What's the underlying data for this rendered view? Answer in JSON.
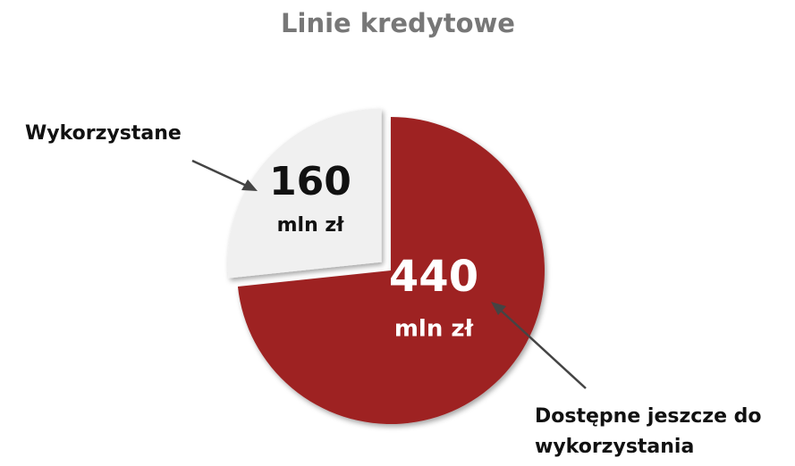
{
  "chart_data": {
    "type": "pie",
    "title": "Linie kredytowe",
    "categories": [
      "Wykorzystane",
      "Dostępne jeszcze do wykorzystania"
    ],
    "values": [
      160,
      440
    ],
    "unit_labels": [
      "mln zł",
      "mln zł"
    ],
    "colors": [
      "#f0f0f0",
      "#9e2222"
    ]
  }
}
